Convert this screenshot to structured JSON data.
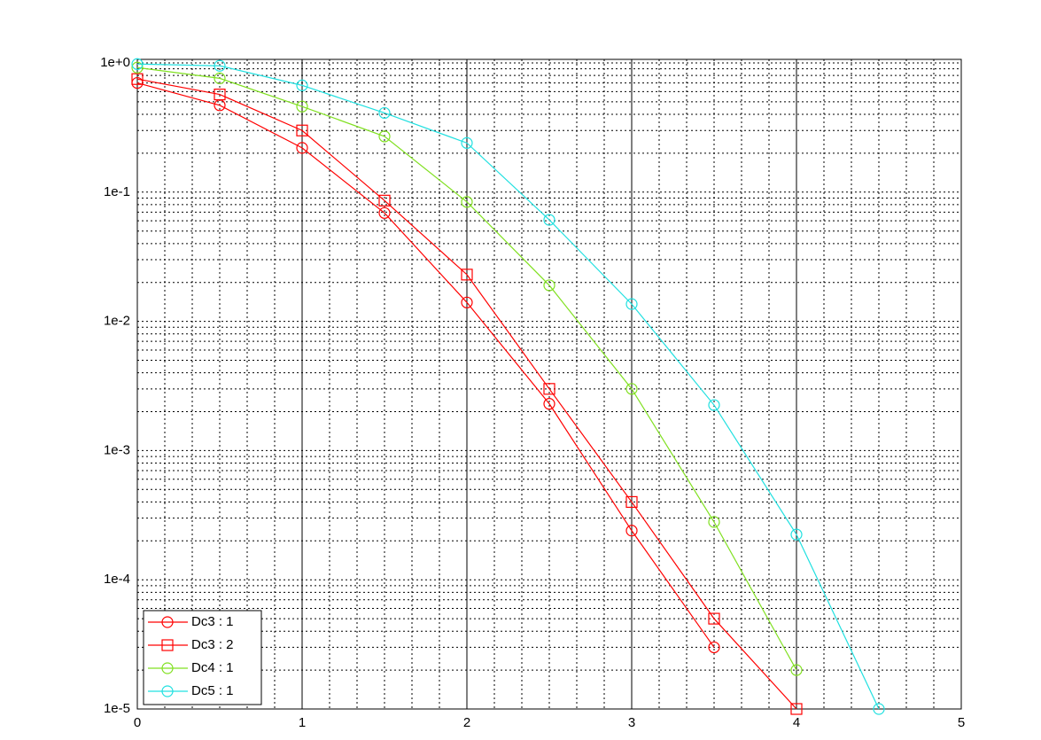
{
  "chart_data": {
    "type": "line",
    "log_y": true,
    "grid": true,
    "legend_position": "lower-left",
    "xlim": [
      0,
      5
    ],
    "xticks": [
      0,
      1,
      2,
      3,
      4,
      5
    ],
    "ylim": [
      1e-05,
      1
    ],
    "yticks": [
      {
        "value": 1e-05,
        "label": "1e-5"
      },
      {
        "value": 0.0001,
        "label": "1e-4"
      },
      {
        "value": 0.001,
        "label": "1e-3"
      },
      {
        "value": 0.01,
        "label": "1e-2"
      },
      {
        "value": 0.1,
        "label": "1e-1"
      },
      {
        "value": 1,
        "label": "1e+0"
      }
    ],
    "series": [
      {
        "name": "Dc3 : 1",
        "color": "#ff0000",
        "marker": "circle",
        "x": [
          0,
          0.5,
          1,
          1.5,
          2,
          2.5,
          3,
          3.5
        ],
        "values": [
          0.7,
          0.47,
          0.22,
          0.069,
          0.014,
          0.0023,
          0.00024,
          3e-05
        ]
      },
      {
        "name": "Dc3 : 2",
        "color": "#ff0000",
        "marker": "square",
        "x": [
          0,
          0.5,
          1,
          1.5,
          2,
          2.5,
          3,
          3.5,
          4
        ],
        "values": [
          0.75,
          0.57,
          0.3,
          0.086,
          0.023,
          0.003,
          0.0004,
          5e-05,
          1e-05
        ]
      },
      {
        "name": "Dc4 : 1",
        "color": "#80e020",
        "marker": "circle",
        "x": [
          0,
          0.5,
          1,
          1.5,
          2,
          2.5,
          3,
          3.5,
          4
        ],
        "values": [
          0.92,
          0.76,
          0.46,
          0.27,
          0.084,
          0.019,
          0.003,
          0.00028,
          2e-05
        ]
      },
      {
        "name": "Dc5 : 1",
        "color": "#20e0e0",
        "marker": "circle",
        "x": [
          0,
          0.5,
          1,
          1.5,
          2,
          2.5,
          3,
          3.5,
          4,
          4.5
        ],
        "values": [
          0.98,
          0.95,
          0.67,
          0.41,
          0.24,
          0.061,
          0.0136,
          0.00225,
          0.000224,
          1e-05
        ]
      }
    ]
  }
}
